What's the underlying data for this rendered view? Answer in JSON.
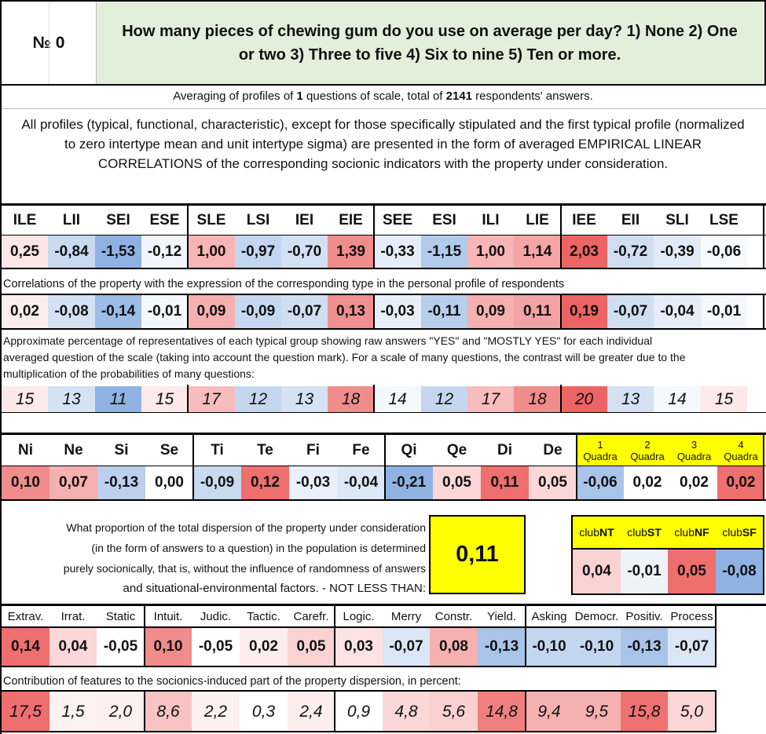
{
  "header": {
    "number_label": "№ 0",
    "question": "How many pieces of chewing gum do you use on average per day? 1) None 2) One or two 3) Three to five 4) Six to nine 5) Ten or more."
  },
  "summary": {
    "pre": "Averaging of profiles of ",
    "count": "1",
    "mid": " questions of scale, total of ",
    "total": "2141",
    "post": " respondents' answers."
  },
  "intro": "All profiles (typical, functional, characteristic), except for those specifically stipulated and the first typical profile (normalized to zero intertype mean and unit intertype sigma) are presented in the form of averaged EMPIRICAL LINEAR CORRELATIONS of the corresponding socionic indicators with the property under consideration.",
  "types": {
    "headers": [
      "ILE",
      "LII",
      "SEI",
      "ESE",
      "SLE",
      "LSI",
      "IEI",
      "EIE",
      "SEE",
      "ESI",
      "ILI",
      "LIE",
      "IEE",
      "EII",
      "SLI",
      "LSE"
    ],
    "profile": [
      "0,25",
      "-0,84",
      "-1,53",
      "-0,12",
      "1,00",
      "-0,97",
      "-0,70",
      "1,39",
      "-0,33",
      "-1,15",
      "1,00",
      "1,14",
      "2,03",
      "-0,72",
      "-0,39",
      "-0,06"
    ],
    "correlation_note": "Correlations of the property with the expression of the corresponding type in the personal profile of respondents",
    "correlations": [
      "0,02",
      "-0,08",
      "-0,14",
      "-0,01",
      "0,09",
      "-0,09",
      "-0,07",
      "0,13",
      "-0,03",
      "-0,11",
      "0,09",
      "0,11",
      "0,19",
      "-0,07",
      "-0,04",
      "-0,01"
    ],
    "percent_note_1": "Approximate percentage of representatives of each typical group showing raw answers \"YES\" and \"MOSTLY YES\" for each individual",
    "percent_note_2": "averaged question of the scale (taking into account the question mark). For a scale of many questions, the contrast will be greater due to the",
    "percent_note_3": "multiplication of the probabilities of many questions:",
    "percents": [
      "15",
      "13",
      "11",
      "15",
      "17",
      "12",
      "13",
      "18",
      "14",
      "12",
      "17",
      "18",
      "20",
      "13",
      "14",
      "15"
    ],
    "profile_colors": [
      "#fde6e6",
      "#c8d9f0",
      "#8fb2e3",
      "#f2f6fc",
      "#f7b5b5",
      "#c3d6ef",
      "#d2e0f3",
      "#f08c8c",
      "#e4edf8",
      "#b2cbeb",
      "#f7b5b5",
      "#f5a5a5",
      "#ec6464",
      "#d0def2",
      "#e1ebf7",
      "#f7f9fd"
    ],
    "corr_colors": [
      "#fdeeee",
      "#d3e1f3",
      "#9dbce6",
      "#f4f7fc",
      "#f5b0b0",
      "#c6d8f0",
      "#d0def2",
      "#ef8f8f",
      "#e7eff9",
      "#b7cfec",
      "#f5b0b0",
      "#f3a3a3",
      "#ec6464",
      "#d0def2",
      "#e4edf8",
      "#f4f7fc"
    ],
    "pct_colors": [
      "#fde9e9",
      "#d4e2f4",
      "#8fb2e3",
      "#fde9e9",
      "#f7bcbc",
      "#c5d7ef",
      "#d4e2f4",
      "#f08c8c",
      "#f4f7fc",
      "#c5d7ef",
      "#f7bcbc",
      "#f08c8c",
      "#ec6464",
      "#d4e2f4",
      "#f4f7fc",
      "#fde9e9"
    ]
  },
  "functions": {
    "headers": [
      "Ni",
      "Ne",
      "Si",
      "Se",
      "Ti",
      "Te",
      "Fi",
      "Fe",
      "Qi",
      "Qe",
      "Di",
      "De"
    ],
    "values": [
      "0,10",
      "0,07",
      "-0,13",
      "0,00",
      "-0,09",
      "0,12",
      "-0,03",
      "-0,04",
      "-0,21",
      "0,05",
      "0,11",
      "0,05"
    ],
    "colors": [
      "#f08c8c",
      "#f5b0b0",
      "#bcd0ed",
      "#ffffff",
      "#c8d9f0",
      "#ef6e6e",
      "#e9f0f9",
      "#dde8f6",
      "#8fb2e3",
      "#fbd7d7",
      "#ef6e6e",
      "#fbd7d7"
    ],
    "quadra_numbers": [
      "1",
      "2",
      "3",
      "4"
    ],
    "quadra_word": "Quadra",
    "quadra_values": [
      "-0,06",
      "0,02",
      "0,02",
      "0,02"
    ],
    "quadra_colors": [
      "#a9c4e9",
      "#ffffff",
      "#ffffff",
      "#ef6e6e"
    ]
  },
  "dispersion": {
    "line1": "What proportion of the total dispersion of the property under consideration",
    "line2": "(in the form of answers to a question) in the population is determined",
    "line3": "purely socionically, that is, without the influence of randomness of answers",
    "line4": "and situational-environmental factors. - NOT LESS THAN:",
    "value": "0,11",
    "highlight": "#ffff00"
  },
  "clubs": {
    "prefix": "club",
    "names": [
      "NT",
      "ST",
      "NF",
      "SF"
    ],
    "values": [
      "0,04",
      "-0,01",
      "0,05",
      "-0,08"
    ],
    "colors": [
      "#fbd2d2",
      "#eef3fa",
      "#ef6e6e",
      "#8fb2e3"
    ]
  },
  "traits": {
    "headers": [
      "Extrav.",
      "Irrat.",
      "Static",
      "Intuit.",
      "Judic.",
      "Tactic.",
      "Carefr.",
      "Logic.",
      "Merry",
      "Constr.",
      "Yield.",
      "Asking",
      "Democr.",
      "Positiv.",
      "Process"
    ],
    "values": [
      "0,14",
      "0,04",
      "-0,05",
      "0,10",
      "-0,05",
      "0,02",
      "0,05",
      "0,03",
      "-0,07",
      "0,08",
      "-0,13",
      "-0,10",
      "-0,10",
      "-0,13",
      "-0,07"
    ],
    "colors": [
      "#ef6e6e",
      "#fbd7d7",
      "#ffffff",
      "#f08c8c",
      "#ffffff",
      "#fdeeee",
      "#fbd2d2",
      "#fde2e2",
      "#dbe6f5",
      "#f5b0b0",
      "#a9c4e9",
      "#c3d6ef",
      "#c3d6ef",
      "#a9c4e9",
      "#dbe6f5"
    ],
    "contribution_note": "Contribution of features to the sociоnics-induced part of the property dispersion, in percent:",
    "contributions": [
      "17,5",
      "1,5",
      "2,0",
      "8,6",
      "2,2",
      "0,3",
      "2,4",
      "0,9",
      "4,8",
      "5,6",
      "14,8",
      "9,4",
      "9,5",
      "15,8",
      "5,0"
    ],
    "contrib_colors": [
      "#ef6e6e",
      "#fdf2f2",
      "#fdf0f0",
      "#f8c3c3",
      "#fdf0f0",
      "#ffffff",
      "#fdeeee",
      "#ffffff",
      "#fbd7d7",
      "#fad0d0",
      "#f08080",
      "#f5b0b0",
      "#f5b0b0",
      "#ef7272",
      "#fbd7d7"
    ]
  }
}
